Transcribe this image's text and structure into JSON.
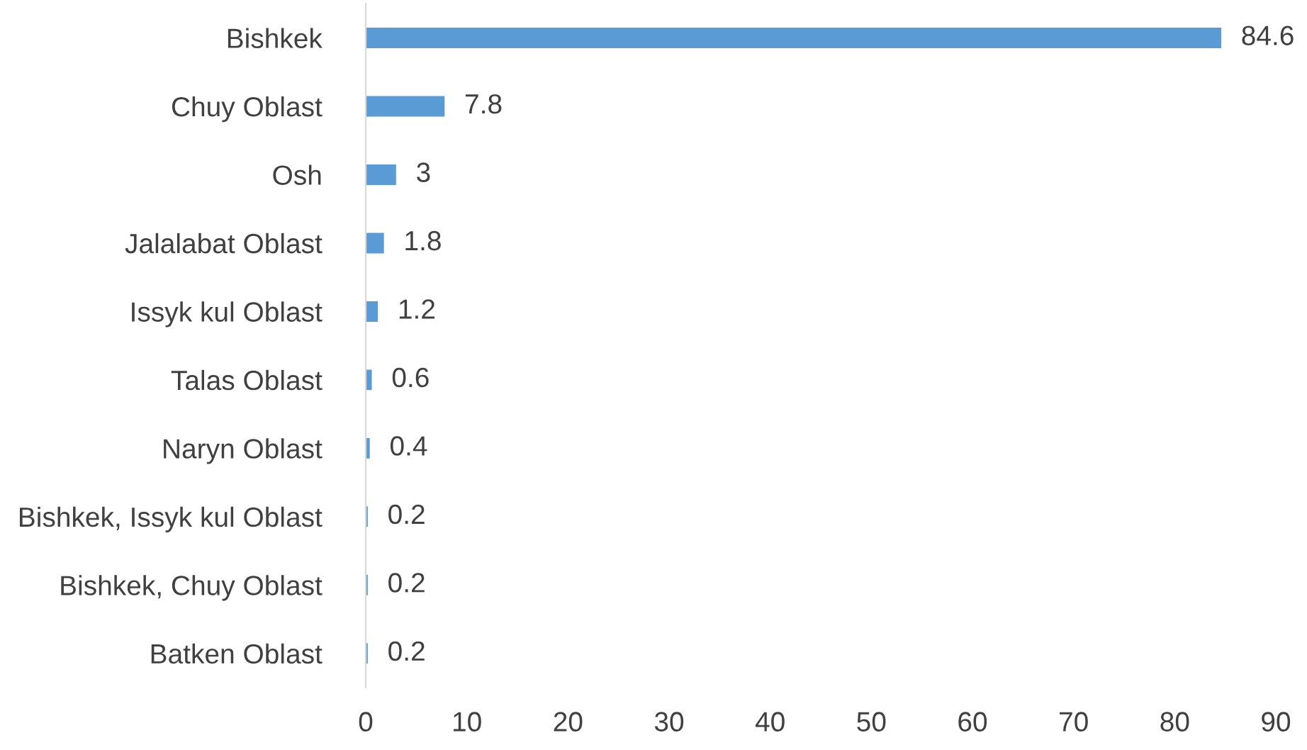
{
  "chart_data": {
    "type": "bar",
    "orientation": "horizontal",
    "categories": [
      "Bishkek",
      "Chuy Oblast",
      "Osh",
      "Jalalabat Oblast",
      "Issyk kul Oblast",
      "Talas Oblast",
      "Naryn Oblast",
      "Bishkek, Issyk kul Oblast",
      "Bishkek, Chuy Oblast",
      "Batken Oblast"
    ],
    "values": [
      84.6,
      7.8,
      3,
      1.8,
      1.2,
      0.6,
      0.4,
      0.2,
      0.2,
      0.2
    ],
    "color": "#5b9bd5",
    "xlim": [
      0,
      90
    ],
    "xticks": [
      0,
      10,
      20,
      30,
      40,
      50,
      60,
      70,
      80,
      90
    ],
    "data_labels": true,
    "grid": false,
    "legend": false
  }
}
